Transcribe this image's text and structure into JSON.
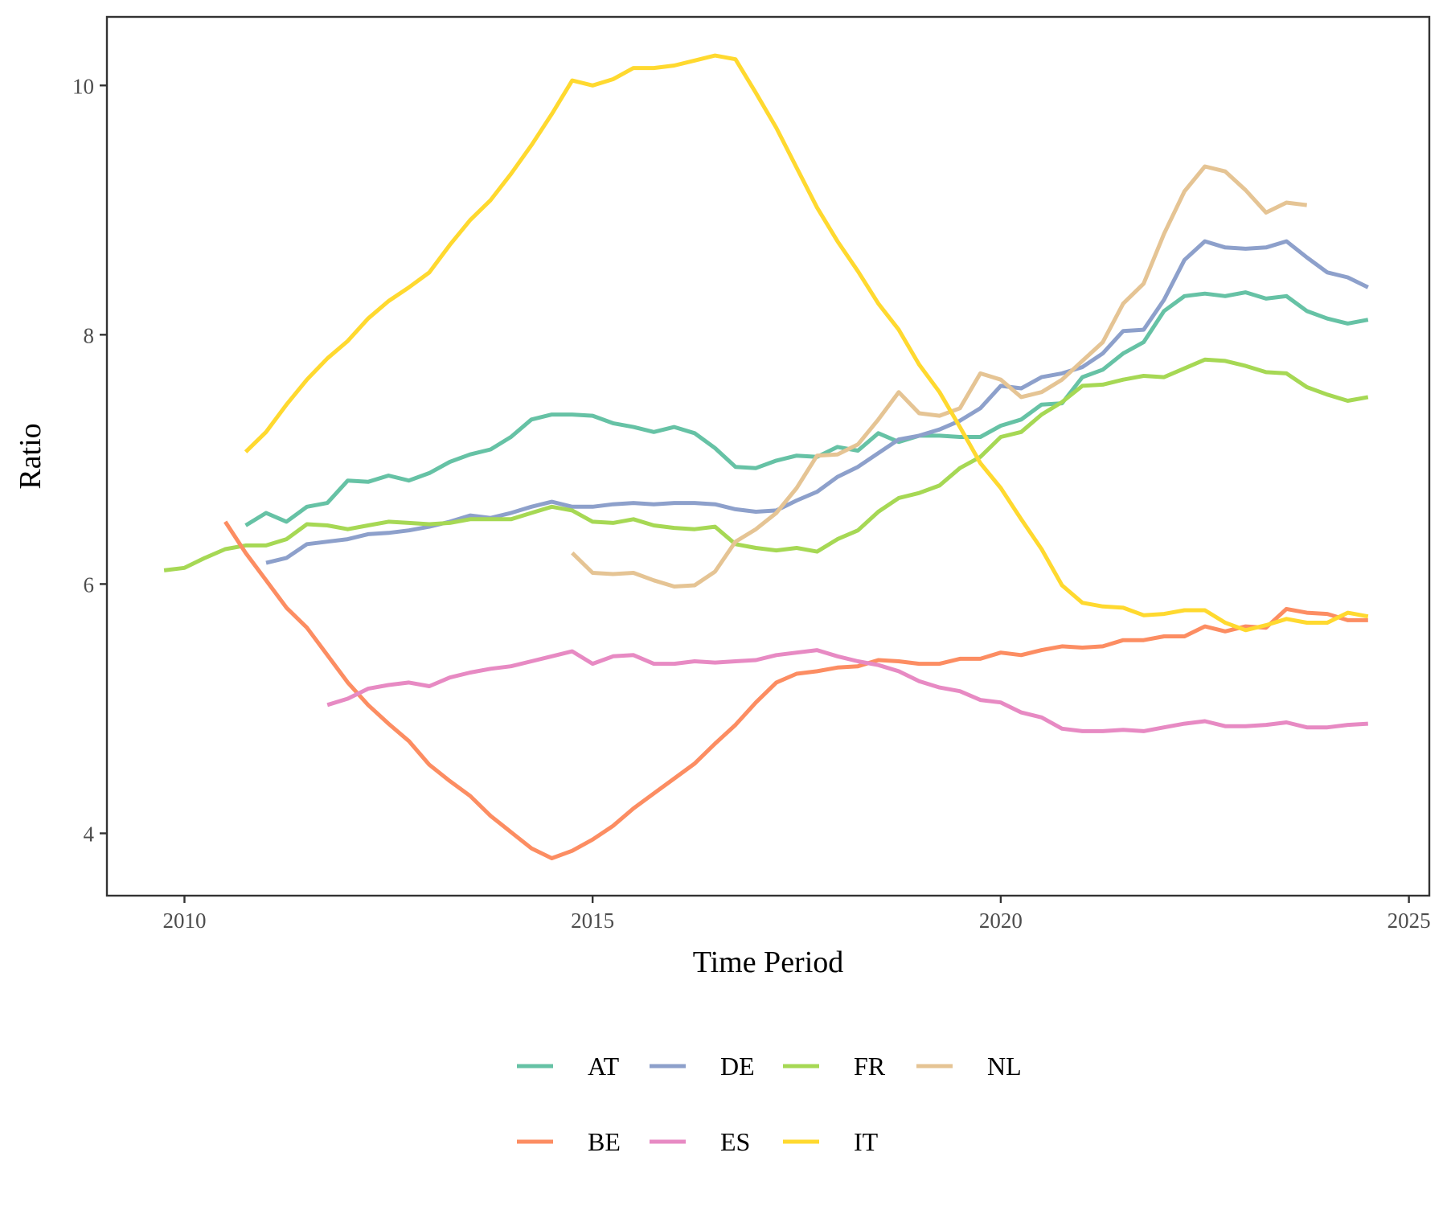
{
  "chart_data": {
    "type": "line",
    "title": "",
    "xlabel": "Time Period",
    "ylabel": "Ratio",
    "xlim": [
      2009.05,
      2025.25
    ],
    "ylim": [
      3.5,
      10.55
    ],
    "xticks": [
      2010,
      2015,
      2020,
      2025
    ],
    "yticks": [
      4,
      6,
      8,
      10
    ],
    "x_tick_labels": [
      "2010",
      "2015",
      "2020",
      "2025"
    ],
    "y_tick_labels": [
      "4",
      "6",
      "8",
      "10"
    ],
    "grid": false,
    "legend_position": "bottom",
    "legend_rows": [
      [
        "AT",
        "DE",
        "FR",
        "NL"
      ],
      [
        "BE",
        "ES",
        "IT"
      ]
    ],
    "series": [
      {
        "name": "AT",
        "color": "#66c2a5",
        "x": [
          2010.75,
          2011.0,
          2011.25,
          2011.5,
          2011.75,
          2012.0,
          2012.25,
          2012.5,
          2012.75,
          2013.0,
          2013.25,
          2013.5,
          2013.75,
          2014.0,
          2014.25,
          2014.5,
          2014.75,
          2015.0,
          2015.25,
          2015.5,
          2015.75,
          2016.0,
          2016.25,
          2016.5,
          2016.75,
          2017.0,
          2017.25,
          2017.5,
          2017.75,
          2018.0,
          2018.25,
          2018.5,
          2018.75,
          2019.0,
          2019.25,
          2019.5,
          2019.75,
          2020.0,
          2020.25,
          2020.5,
          2020.75,
          2021.0,
          2021.25,
          2021.5,
          2021.75,
          2022.0,
          2022.25,
          2022.5,
          2022.75,
          2023.0,
          2023.25,
          2023.5,
          2023.75,
          2024.0,
          2024.25,
          2024.5
        ],
        "y": [
          6.47,
          6.57,
          6.5,
          6.62,
          6.65,
          6.83,
          6.82,
          6.87,
          6.83,
          6.89,
          6.98,
          7.04,
          7.08,
          7.18,
          7.32,
          7.36,
          7.36,
          7.35,
          7.29,
          7.26,
          7.22,
          7.26,
          7.21,
          7.09,
          6.94,
          6.93,
          6.99,
          7.03,
          7.02,
          7.1,
          7.07,
          7.21,
          7.14,
          7.19,
          7.19,
          7.18,
          7.18,
          7.27,
          7.32,
          7.44,
          7.45,
          7.66,
          7.72,
          7.85,
          7.94,
          8.19,
          8.31,
          8.33,
          8.31,
          8.34,
          8.29,
          8.31,
          8.19,
          8.13,
          8.09,
          8.12
        ]
      },
      {
        "name": "DE",
        "color": "#8da0cb",
        "x": [
          2011.0,
          2011.25,
          2011.5,
          2011.75,
          2012.0,
          2012.25,
          2012.5,
          2012.75,
          2013.0,
          2013.25,
          2013.5,
          2013.75,
          2014.0,
          2014.25,
          2014.5,
          2014.75,
          2015.0,
          2015.25,
          2015.5,
          2015.75,
          2016.0,
          2016.25,
          2016.5,
          2016.75,
          2017.0,
          2017.25,
          2017.5,
          2017.75,
          2018.0,
          2018.25,
          2018.5,
          2018.75,
          2019.0,
          2019.25,
          2019.5,
          2019.75,
          2020.0,
          2020.25,
          2020.5,
          2020.75,
          2021.0,
          2021.25,
          2021.5,
          2021.75,
          2022.0,
          2022.25,
          2022.5,
          2022.75,
          2023.0,
          2023.25,
          2023.5,
          2023.75,
          2024.0,
          2024.25,
          2024.5
        ],
        "y": [
          6.17,
          6.21,
          6.32,
          6.34,
          6.36,
          6.4,
          6.41,
          6.43,
          6.46,
          6.5,
          6.55,
          6.53,
          6.57,
          6.62,
          6.66,
          6.62,
          6.62,
          6.64,
          6.65,
          6.64,
          6.65,
          6.65,
          6.64,
          6.6,
          6.58,
          6.59,
          6.67,
          6.74,
          6.86,
          6.94,
          7.05,
          7.16,
          7.19,
          7.24,
          7.31,
          7.41,
          7.59,
          7.57,
          7.66,
          7.69,
          7.74,
          7.85,
          8.03,
          8.04,
          8.28,
          8.6,
          8.75,
          8.7,
          8.69,
          8.7,
          8.75,
          8.62,
          8.5,
          8.46,
          8.38
        ]
      },
      {
        "name": "FR",
        "color": "#a6d854",
        "x": [
          2009.75,
          2010.0,
          2010.25,
          2010.5,
          2010.75,
          2011.0,
          2011.25,
          2011.5,
          2011.75,
          2012.0,
          2012.25,
          2012.5,
          2012.75,
          2013.0,
          2013.25,
          2013.5,
          2013.75,
          2014.0,
          2014.25,
          2014.5,
          2014.75,
          2015.0,
          2015.25,
          2015.5,
          2015.75,
          2016.0,
          2016.25,
          2016.5,
          2016.75,
          2017.0,
          2017.25,
          2017.5,
          2017.75,
          2018.0,
          2018.25,
          2018.5,
          2018.75,
          2019.0,
          2019.25,
          2019.5,
          2019.75,
          2020.0,
          2020.25,
          2020.5,
          2020.75,
          2021.0,
          2021.25,
          2021.5,
          2021.75,
          2022.0,
          2022.25,
          2022.5,
          2022.75,
          2023.0,
          2023.25,
          2023.5,
          2023.75,
          2024.0,
          2024.25,
          2024.5
        ],
        "y": [
          6.11,
          6.13,
          6.21,
          6.28,
          6.31,
          6.31,
          6.36,
          6.48,
          6.47,
          6.44,
          6.47,
          6.5,
          6.49,
          6.48,
          6.49,
          6.52,
          6.52,
          6.52,
          6.57,
          6.62,
          6.59,
          6.5,
          6.49,
          6.52,
          6.47,
          6.45,
          6.44,
          6.46,
          6.32,
          6.29,
          6.27,
          6.29,
          6.26,
          6.36,
          6.43,
          6.58,
          6.69,
          6.73,
          6.79,
          6.93,
          7.02,
          7.18,
          7.22,
          7.36,
          7.46,
          7.59,
          7.6,
          7.64,
          7.67,
          7.66,
          7.73,
          7.8,
          7.79,
          7.75,
          7.7,
          7.69,
          7.58,
          7.52,
          7.47,
          7.5
        ]
      },
      {
        "name": "NL",
        "color": "#e5c494",
        "x": [
          2014.75,
          2015.0,
          2015.25,
          2015.5,
          2015.75,
          2016.0,
          2016.25,
          2016.5,
          2016.75,
          2017.0,
          2017.25,
          2017.5,
          2017.75,
          2018.0,
          2018.25,
          2018.5,
          2018.75,
          2019.0,
          2019.25,
          2019.5,
          2019.75,
          2020.0,
          2020.25,
          2020.5,
          2020.75,
          2021.0,
          2021.25,
          2021.5,
          2021.75,
          2022.0,
          2022.25,
          2022.5,
          2022.75,
          2023.0,
          2023.25,
          2023.5,
          2023.75
        ],
        "y": [
          6.25,
          6.09,
          6.08,
          6.09,
          6.03,
          5.98,
          5.99,
          6.1,
          6.34,
          6.44,
          6.57,
          6.77,
          7.03,
          7.04,
          7.12,
          7.32,
          7.54,
          7.37,
          7.35,
          7.41,
          7.69,
          7.64,
          7.5,
          7.54,
          7.64,
          7.79,
          7.94,
          8.25,
          8.41,
          8.81,
          9.15,
          9.35,
          9.31,
          9.16,
          8.98,
          9.06,
          9.04
        ]
      },
      {
        "name": "BE",
        "color": "#fc8d62",
        "x": [
          2010.5,
          2010.75,
          2011.0,
          2011.25,
          2011.5,
          2011.75,
          2012.0,
          2012.25,
          2012.5,
          2012.75,
          2013.0,
          2013.25,
          2013.5,
          2013.75,
          2014.0,
          2014.25,
          2014.5,
          2014.75,
          2015.0,
          2015.25,
          2015.5,
          2015.75,
          2016.0,
          2016.25,
          2016.5,
          2016.75,
          2017.0,
          2017.25,
          2017.5,
          2017.75,
          2018.0,
          2018.25,
          2018.5,
          2018.75,
          2019.0,
          2019.25,
          2019.5,
          2019.75,
          2020.0,
          2020.25,
          2020.5,
          2020.75,
          2021.0,
          2021.25,
          2021.5,
          2021.75,
          2022.0,
          2022.25,
          2022.5,
          2022.75,
          2023.0,
          2023.25,
          2023.5,
          2023.75,
          2024.0,
          2024.25,
          2024.5
        ],
        "y": [
          6.5,
          6.25,
          6.03,
          5.81,
          5.65,
          5.43,
          5.21,
          5.03,
          4.88,
          4.74,
          4.55,
          4.42,
          4.3,
          4.14,
          4.01,
          3.88,
          3.8,
          3.86,
          3.95,
          4.06,
          4.2,
          4.32,
          4.44,
          4.56,
          4.72,
          4.87,
          5.05,
          5.21,
          5.28,
          5.3,
          5.33,
          5.34,
          5.39,
          5.38,
          5.36,
          5.36,
          5.4,
          5.4,
          5.45,
          5.43,
          5.47,
          5.5,
          5.49,
          5.5,
          5.55,
          5.55,
          5.58,
          5.58,
          5.66,
          5.62,
          5.66,
          5.65,
          5.8,
          5.77,
          5.76,
          5.71,
          5.71
        ]
      },
      {
        "name": "ES",
        "color": "#e78ac3",
        "x": [
          2011.75,
          2012.0,
          2012.25,
          2012.5,
          2012.75,
          2013.0,
          2013.25,
          2013.5,
          2013.75,
          2014.0,
          2014.25,
          2014.5,
          2014.75,
          2015.0,
          2015.25,
          2015.5,
          2015.75,
          2016.0,
          2016.25,
          2016.5,
          2016.75,
          2017.0,
          2017.25,
          2017.5,
          2017.75,
          2018.0,
          2018.25,
          2018.5,
          2018.75,
          2019.0,
          2019.25,
          2019.5,
          2019.75,
          2020.0,
          2020.25,
          2020.5,
          2020.75,
          2021.0,
          2021.25,
          2021.5,
          2021.75,
          2022.0,
          2022.25,
          2022.5,
          2022.75,
          2023.0,
          2023.25,
          2023.5,
          2023.75,
          2024.0,
          2024.25,
          2024.5
        ],
        "y": [
          5.03,
          5.08,
          5.16,
          5.19,
          5.21,
          5.18,
          5.25,
          5.29,
          5.32,
          5.34,
          5.38,
          5.42,
          5.46,
          5.36,
          5.42,
          5.43,
          5.36,
          5.36,
          5.38,
          5.37,
          5.38,
          5.39,
          5.43,
          5.45,
          5.47,
          5.42,
          5.38,
          5.35,
          5.3,
          5.22,
          5.17,
          5.14,
          5.07,
          5.05,
          4.97,
          4.93,
          4.84,
          4.82,
          4.82,
          4.83,
          4.82,
          4.85,
          4.88,
          4.9,
          4.86,
          4.86,
          4.87,
          4.89,
          4.85,
          4.85,
          4.87,
          4.88
        ]
      },
      {
        "name": "IT",
        "color": "#ffd92f",
        "x": [
          2010.75,
          2011.0,
          2011.25,
          2011.5,
          2011.75,
          2012.0,
          2012.25,
          2012.5,
          2012.75,
          2013.0,
          2013.25,
          2013.5,
          2013.75,
          2014.0,
          2014.25,
          2014.5,
          2014.75,
          2015.0,
          2015.25,
          2015.5,
          2015.75,
          2016.0,
          2016.25,
          2016.5,
          2016.75,
          2017.0,
          2017.25,
          2017.5,
          2017.75,
          2018.0,
          2018.25,
          2018.5,
          2018.75,
          2019.0,
          2019.25,
          2019.5,
          2019.75,
          2020.0,
          2020.25,
          2020.5,
          2020.75,
          2021.0,
          2021.25,
          2021.5,
          2021.75,
          2022.0,
          2022.25,
          2022.5,
          2022.75,
          2023.0,
          2023.25,
          2023.5,
          2023.75,
          2024.0,
          2024.25,
          2024.5
        ],
        "y": [
          7.06,
          7.22,
          7.44,
          7.64,
          7.81,
          7.95,
          8.13,
          8.27,
          8.38,
          8.5,
          8.72,
          8.92,
          9.08,
          9.29,
          9.52,
          9.77,
          10.04,
          10.0,
          10.05,
          10.14,
          10.14,
          10.16,
          10.2,
          10.24,
          10.21,
          9.94,
          9.66,
          9.34,
          9.02,
          8.75,
          8.51,
          8.25,
          8.04,
          7.76,
          7.54,
          7.26,
          6.97,
          6.77,
          6.52,
          6.28,
          5.99,
          5.85,
          5.82,
          5.81,
          5.75,
          5.76,
          5.79,
          5.79,
          5.69,
          5.63,
          5.67,
          5.72,
          5.69,
          5.69,
          5.77,
          5.74
        ]
      }
    ]
  }
}
